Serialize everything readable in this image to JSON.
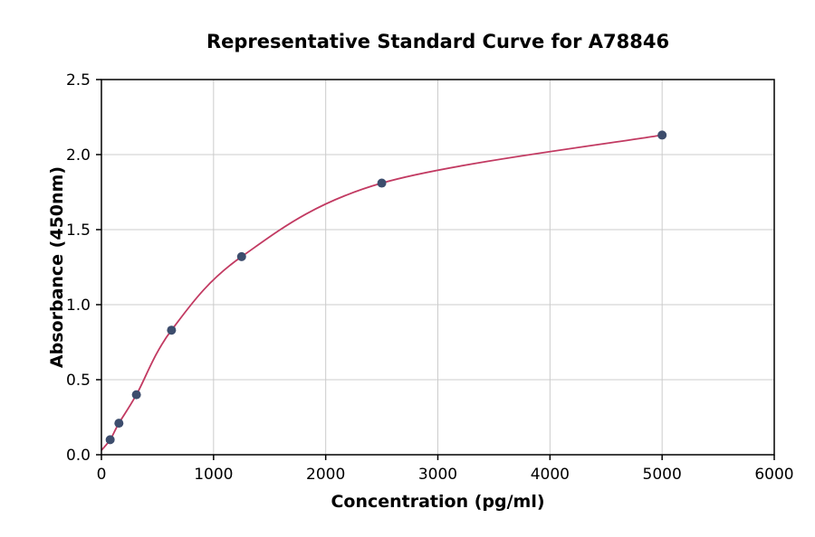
{
  "chart_data": {
    "type": "line",
    "title": "Representative Standard Curve for A78846",
    "xlabel": "Concentration (pg/ml)",
    "ylabel": "Absorbance (450nm)",
    "xlim": [
      0,
      6000
    ],
    "ylim": [
      0,
      2.5
    ],
    "xticks": [
      0,
      1000,
      2000,
      3000,
      4000,
      5000,
      6000
    ],
    "yticks": [
      0,
      0.5,
      1,
      1.5,
      2,
      2.5
    ],
    "grid": true,
    "legend": "none",
    "points": [
      {
        "x": 78,
        "y": 0.1
      },
      {
        "x": 156,
        "y": 0.21
      },
      {
        "x": 312,
        "y": 0.4
      },
      {
        "x": 625,
        "y": 0.83
      },
      {
        "x": 1250,
        "y": 1.32
      },
      {
        "x": 2500,
        "y": 1.81
      },
      {
        "x": 5000,
        "y": 2.13
      }
    ],
    "curve_start": {
      "x": 0,
      "y": 0.03
    },
    "colors": {
      "point": "#3d4d6d",
      "curve": "#c23a62",
      "grid": "#cccccc",
      "axis": "#000000",
      "background": "#ffffff"
    }
  }
}
